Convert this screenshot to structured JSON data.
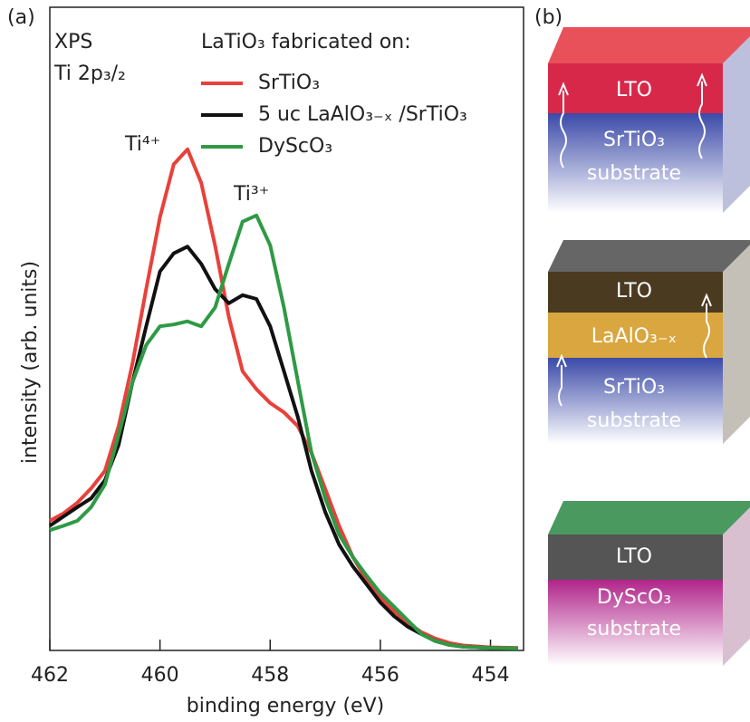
{
  "chart_data": {
    "type": "line",
    "panel_label": "(a)",
    "xlabel": "binding energy (eV)",
    "ylabel": "intensity (arb. units)",
    "annotations": [
      "XPS",
      "Ti 2p₃/₂",
      "Ti⁴⁺",
      "Ti³⁺"
    ],
    "legend_title": "LaTiO₃ fabricated on:",
    "xlim": [
      462,
      453.4
    ],
    "ylim": [
      0,
      100
    ],
    "xticks": [
      462,
      460,
      458,
      456,
      454
    ],
    "x": [
      462,
      461.75,
      461.5,
      461.25,
      461,
      460.75,
      460.5,
      460.25,
      460,
      459.75,
      459.5,
      459.25,
      459,
      458.75,
      458.5,
      458.25,
      458,
      457.75,
      457.5,
      457.25,
      457,
      456.75,
      456.5,
      456.25,
      456,
      455.75,
      455.5,
      455.25,
      455,
      454.75,
      454.5,
      454,
      453.5
    ],
    "series": [
      {
        "name": "SrTiO₃",
        "color": "#e8413b",
        "values": [
          20.8,
          22,
          23.7,
          26,
          28.8,
          36,
          46,
          58,
          69.5,
          78,
          80.4,
          75,
          65,
          53.5,
          44.8,
          41.9,
          39.7,
          38.2,
          36,
          31.7,
          25.9,
          20,
          15,
          11.3,
          8.4,
          6.3,
          4.4,
          2.9,
          1.9,
          1.2,
          0.8,
          0.5,
          0.4
        ]
      },
      {
        "name": "5 uc LaAlO₃₋ₓ /SrTiO₃",
        "color": "#111111",
        "values": [
          20,
          21.5,
          23,
          24.4,
          27.3,
          33,
          43,
          52,
          60.8,
          63.7,
          64.8,
          62,
          58,
          55.7,
          57,
          56.4,
          52,
          44.8,
          37.5,
          28.8,
          22.2,
          17,
          13.5,
          10.6,
          7.7,
          5.5,
          3.8,
          2.6,
          1.5,
          0.9,
          0.6,
          0.4,
          0.3
        ]
      },
      {
        "name": "DyScO₃",
        "color": "#2f9a45",
        "values": [
          19.3,
          20,
          20.8,
          23,
          26.6,
          34.6,
          43,
          49,
          52,
          52.3,
          52.8,
          52,
          55,
          62,
          68.8,
          69.8,
          65,
          55,
          43.3,
          31.7,
          24.4,
          18.6,
          15,
          12,
          9.2,
          7,
          4.8,
          2.6,
          1.5,
          0.9,
          0.6,
          0.4,
          0.3
        ]
      }
    ]
  },
  "panel_b": {
    "label": "(b)",
    "stacks": [
      {
        "layers": [
          "LTO",
          "SrTiO₃"
        ],
        "substrate": "substrate"
      },
      {
        "layers": [
          "LTO",
          "LaAlO₃₋ₓ",
          "SrTiO₃"
        ],
        "substrate": "substrate"
      },
      {
        "layers": [
          "LTO",
          "DyScO₃"
        ],
        "substrate": "substrate"
      }
    ]
  }
}
